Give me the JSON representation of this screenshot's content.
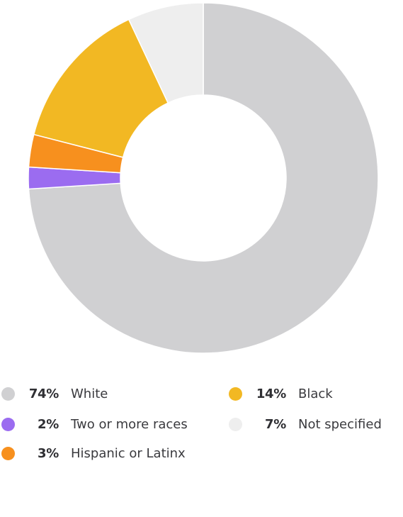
{
  "chart_data": {
    "type": "pie",
    "variant": "donut",
    "title": "",
    "legend_position": "bottom",
    "slices": [
      {
        "label": "White",
        "value": 74,
        "display": "74%",
        "color": "#d0d0d2"
      },
      {
        "label": "Two or more races",
        "value": 2,
        "display": "2%",
        "color": "#9b6cf0"
      },
      {
        "label": "Hispanic or Latinx",
        "value": 3,
        "display": "3%",
        "color": "#f7901e"
      },
      {
        "label": "Black",
        "value": 14,
        "display": "14%",
        "color": "#f2b823"
      },
      {
        "label": "Not specified",
        "value": 7,
        "display": "7%",
        "color": "#eeeeee"
      }
    ]
  },
  "legend": [
    {
      "pct": "74%",
      "label": "White",
      "color": "#d0d0d2"
    },
    {
      "pct": "14%",
      "label": "Black",
      "color": "#f2b823"
    },
    {
      "pct": "2%",
      "label": "Two or more races",
      "color": "#9b6cf0"
    },
    {
      "pct": "7%",
      "label": "Not specified",
      "color": "#eeeeee"
    },
    {
      "pct": "3%",
      "label": "Hispanic or Latinx",
      "color": "#f7901e"
    }
  ]
}
